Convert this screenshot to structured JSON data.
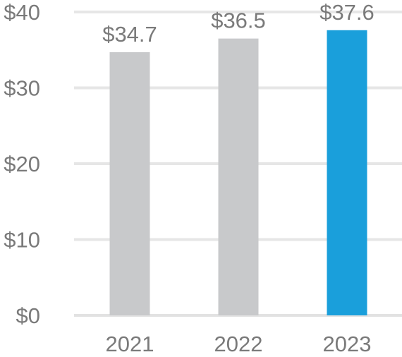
{
  "chart_data": {
    "type": "bar",
    "categories": [
      "2021",
      "2022",
      "2023"
    ],
    "values": [
      34.7,
      36.5,
      37.6
    ],
    "value_labels": [
      "$34.7",
      "$36.5",
      "$37.6"
    ],
    "bar_colors": [
      "#c8c9cb",
      "#c8c9cb",
      "#1a9fdb"
    ],
    "yticks": [
      0,
      10,
      20,
      30,
      40
    ],
    "ytick_labels": [
      "$0",
      "$10",
      "$20",
      "$30",
      "$40"
    ],
    "ylim": [
      0,
      40
    ],
    "grid": true,
    "legend": "none",
    "text_color": "#7a7a7a",
    "grid_color": "#e6e6e6"
  }
}
